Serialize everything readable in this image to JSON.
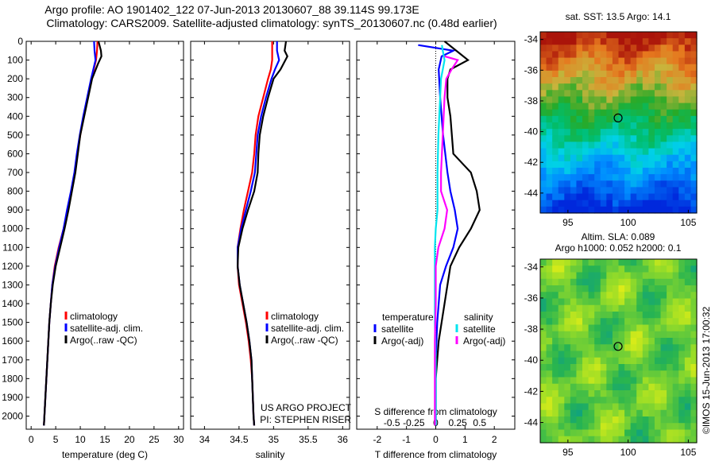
{
  "header": {
    "title1": "Argo profile: AO 1901402_122 07-Jun-2013 20130607_88 39.114S 99.173E",
    "title2": "Climatology: CARS2009. Satellite-adjusted climatology: synTS_20130607.nc (0.48d earlier)"
  },
  "colors": {
    "climatology": "#ff0000",
    "satellite": "#0000ff",
    "argo": "#000000",
    "sal_satellite": "#00e5ee",
    "sal_argo": "#ff00ff"
  },
  "chart_data": [
    {
      "type": "line",
      "id": "temperature",
      "xlabel": "temperature (deg C)",
      "xlim": [
        -1,
        31
      ],
      "xticks": [
        0,
        5,
        10,
        15,
        20,
        25,
        30
      ],
      "ylim": [
        2070,
        0
      ],
      "yticks": [
        0,
        100,
        200,
        300,
        400,
        500,
        600,
        700,
        800,
        900,
        1000,
        1100,
        1200,
        1300,
        1400,
        1500,
        1600,
        1700,
        1800,
        1900,
        2000
      ],
      "legend": [
        "climatology",
        "satellite-adj. clim.",
        "Argo(..raw -QC)"
      ],
      "series": [
        {
          "name": "climatology",
          "color": "red",
          "points": [
            [
              13.5,
              0
            ],
            [
              13.4,
              50
            ],
            [
              13.2,
              100
            ],
            [
              12.3,
              200
            ],
            [
              11.5,
              300
            ],
            [
              10.7,
              400
            ],
            [
              10.0,
              500
            ],
            [
              9.4,
              600
            ],
            [
              8.9,
              700
            ],
            [
              8.2,
              800
            ],
            [
              7.4,
              900
            ],
            [
              6.6,
              1000
            ],
            [
              5.6,
              1100
            ],
            [
              4.8,
              1200
            ],
            [
              4.3,
              1300
            ],
            [
              4.0,
              1400
            ],
            [
              3.7,
              1500
            ],
            [
              3.5,
              1600
            ],
            [
              3.3,
              1700
            ],
            [
              3.1,
              1800
            ],
            [
              2.9,
              1900
            ],
            [
              2.7,
              2000
            ],
            [
              2.6,
              2050
            ]
          ]
        },
        {
          "name": "satellite-adj. clim.",
          "color": "blue",
          "points": [
            [
              12.8,
              0
            ],
            [
              12.9,
              50
            ],
            [
              13.1,
              100
            ],
            [
              12.2,
              200
            ],
            [
              11.4,
              300
            ],
            [
              10.6,
              400
            ],
            [
              9.9,
              500
            ],
            [
              9.3,
              600
            ],
            [
              8.8,
              700
            ],
            [
              8.1,
              800
            ],
            [
              7.3,
              900
            ],
            [
              6.6,
              1000
            ],
            [
              5.7,
              1100
            ],
            [
              4.9,
              1200
            ],
            [
              4.3,
              1300
            ],
            [
              4.0,
              1400
            ],
            [
              3.7,
              1500
            ],
            [
              3.5,
              1600
            ],
            [
              3.3,
              1700
            ],
            [
              3.1,
              1800
            ],
            [
              2.9,
              1900
            ],
            [
              2.7,
              2000
            ],
            [
              2.6,
              2050
            ]
          ]
        },
        {
          "name": "Argo(..raw -QC)",
          "color": "black",
          "points": [
            [
              13.7,
              0
            ],
            [
              14.2,
              50
            ],
            [
              14.3,
              80
            ],
            [
              13.6,
              120
            ],
            [
              12.4,
              200
            ],
            [
              11.6,
              300
            ],
            [
              10.8,
              400
            ],
            [
              10.0,
              500
            ],
            [
              9.5,
              600
            ],
            [
              9.0,
              700
            ],
            [
              8.3,
              800
            ],
            [
              7.6,
              900
            ],
            [
              6.8,
              1000
            ],
            [
              5.9,
              1100
            ],
            [
              5.0,
              1200
            ],
            [
              4.4,
              1300
            ],
            [
              4.0,
              1400
            ],
            [
              3.7,
              1500
            ],
            [
              3.5,
              1600
            ],
            [
              3.3,
              1700
            ],
            [
              3.1,
              1800
            ],
            [
              2.9,
              1900
            ],
            [
              2.7,
              2000
            ],
            [
              2.6,
              2050
            ]
          ]
        }
      ]
    },
    {
      "type": "line",
      "id": "salinity",
      "xlabel": "salinity",
      "xlim": [
        33.8,
        36.1
      ],
      "xticks": [
        34,
        34.5,
        35,
        35.5,
        36
      ],
      "xticklabels": [
        "34",
        "34.5",
        "35",
        "35.5",
        "36"
      ],
      "ylim": [
        2070,
        0
      ],
      "legend": [
        "climatology",
        "satellite-adj. clim.",
        "Argo(..raw -QC)"
      ],
      "annotation": [
        "US ARGO PROJECT",
        "PI: STEPHEN RISER"
      ],
      "series": [
        {
          "name": "climatology",
          "color": "red",
          "points": [
            [
              34.98,
              0
            ],
            [
              34.98,
              100
            ],
            [
              34.96,
              150
            ],
            [
              34.92,
              200
            ],
            [
              34.85,
              300
            ],
            [
              34.78,
              400
            ],
            [
              34.74,
              500
            ],
            [
              34.72,
              600
            ],
            [
              34.69,
              700
            ],
            [
              34.63,
              800
            ],
            [
              34.57,
              900
            ],
            [
              34.52,
              1000
            ],
            [
              34.48,
              1100
            ],
            [
              34.48,
              1200
            ],
            [
              34.5,
              1300
            ],
            [
              34.55,
              1400
            ],
            [
              34.6,
              1500
            ],
            [
              34.64,
              1600
            ],
            [
              34.67,
              1700
            ],
            [
              34.69,
              1800
            ],
            [
              34.7,
              1900
            ],
            [
              34.71,
              2000
            ],
            [
              34.72,
              2050
            ]
          ]
        },
        {
          "name": "satellite-adj. clim.",
          "color": "blue",
          "points": [
            [
              35.05,
              0
            ],
            [
              35.05,
              50
            ],
            [
              35.08,
              100
            ],
            [
              35.02,
              150
            ],
            [
              34.97,
              200
            ],
            [
              34.89,
              300
            ],
            [
              34.82,
              400
            ],
            [
              34.77,
              500
            ],
            [
              34.75,
              600
            ],
            [
              34.73,
              700
            ],
            [
              34.67,
              800
            ],
            [
              34.6,
              900
            ],
            [
              34.53,
              1000
            ],
            [
              34.48,
              1100
            ],
            [
              34.48,
              1200
            ],
            [
              34.51,
              1300
            ],
            [
              34.56,
              1400
            ],
            [
              34.61,
              1500
            ],
            [
              34.65,
              1600
            ],
            [
              34.68,
              1700
            ],
            [
              34.69,
              1800
            ],
            [
              34.7,
              1900
            ],
            [
              34.71,
              2000
            ],
            [
              34.72,
              2050
            ]
          ]
        },
        {
          "name": "Argo(..raw -QC)",
          "color": "black",
          "points": [
            [
              35.18,
              0
            ],
            [
              35.16,
              50
            ],
            [
              35.2,
              80
            ],
            [
              35.1,
              150
            ],
            [
              35.0,
              200
            ],
            [
              34.92,
              300
            ],
            [
              34.85,
              400
            ],
            [
              34.8,
              500
            ],
            [
              34.78,
              600
            ],
            [
              34.77,
              700
            ],
            [
              34.72,
              800
            ],
            [
              34.63,
              900
            ],
            [
              34.55,
              1000
            ],
            [
              34.49,
              1100
            ],
            [
              34.48,
              1200
            ],
            [
              34.51,
              1300
            ],
            [
              34.56,
              1400
            ],
            [
              34.61,
              1500
            ],
            [
              34.65,
              1600
            ],
            [
              34.68,
              1700
            ],
            [
              34.69,
              1800
            ],
            [
              34.7,
              1900
            ],
            [
              34.71,
              2000
            ],
            [
              34.72,
              2050
            ]
          ]
        }
      ]
    },
    {
      "type": "line",
      "id": "difference",
      "xlabel": "T difference from climatology",
      "xlim": [
        -2.7,
        2.7
      ],
      "xticks": [
        -2,
        -1,
        0,
        1,
        2
      ],
      "xticklabels": [
        "-2",
        "-1",
        "0",
        "1",
        "2"
      ],
      "top_axis_label": "S difference from climatology",
      "top_xticks": [
        -0.5,
        -0.25,
        0,
        0.25,
        0.5
      ],
      "top_xticklabels": [
        "-0.5",
        "-0.25",
        "0",
        "0.25",
        "0.5"
      ],
      "ylim": [
        2070,
        0
      ],
      "legend_headers": [
        "temperature",
        "salinity"
      ],
      "legend": [
        "satellite",
        "Argo(-adj)",
        "satellite",
        "Argo(-adj)"
      ],
      "series": [
        {
          "name": "satellite",
          "group": "temperature",
          "color": "blue",
          "points": [
            [
              -0.6,
              20
            ],
            [
              0.6,
              50
            ],
            [
              0.2,
              80
            ],
            [
              0.1,
              150
            ],
            [
              0.15,
              300
            ],
            [
              0.25,
              500
            ],
            [
              0.4,
              700
            ],
            [
              0.5,
              800
            ],
            [
              0.65,
              900
            ],
            [
              0.75,
              1000
            ],
            [
              0.6,
              1100
            ],
            [
              0.35,
              1200
            ],
            [
              0.15,
              1300
            ],
            [
              0.05,
              1500
            ],
            [
              0.0,
              1700
            ],
            [
              0.0,
              2050
            ]
          ]
        },
        {
          "name": "Argo(-adj)",
          "group": "temperature",
          "color": "black",
          "points": [
            [
              0.3,
              0
            ],
            [
              0.7,
              50
            ],
            [
              1.1,
              100
            ],
            [
              0.5,
              150
            ],
            [
              0.4,
              200
            ],
            [
              0.4,
              300
            ],
            [
              0.5,
              400
            ],
            [
              0.6,
              600
            ],
            [
              1.2,
              700
            ],
            [
              1.4,
              800
            ],
            [
              1.5,
              900
            ],
            [
              1.2,
              1000
            ],
            [
              0.8,
              1100
            ],
            [
              0.5,
              1200
            ],
            [
              0.4,
              1300
            ],
            [
              0.3,
              1400
            ],
            [
              0.2,
              1500
            ],
            [
              0.1,
              1600
            ],
            [
              0.05,
              1700
            ],
            [
              0.0,
              1800
            ],
            [
              0.0,
              2050
            ]
          ]
        },
        {
          "name": "satellite",
          "group": "salinity",
          "color": "cyan",
          "points": [
            [
              0.07,
              20
            ],
            [
              0.08,
              50
            ],
            [
              0.1,
              100
            ],
            [
              0.08,
              150
            ],
            [
              0.06,
              200
            ],
            [
              0.05,
              300
            ],
            [
              0.03,
              500
            ],
            [
              0.02,
              700
            ],
            [
              0.02,
              900
            ],
            [
              0.0,
              1000
            ],
            [
              -0.01,
              1100
            ],
            [
              -0.01,
              1200
            ],
            [
              -0.01,
              1300
            ],
            [
              -0.01,
              1500
            ],
            [
              0.0,
              1700
            ],
            [
              0.0,
              2050
            ]
          ]
        },
        {
          "name": "Argo(-adj)",
          "group": "salinity",
          "color": "magenta",
          "points": [
            [
              0.1,
              80
            ],
            [
              0.25,
              100
            ],
            [
              0.18,
              150
            ],
            [
              0.12,
              200
            ],
            [
              0.1,
              300
            ],
            [
              0.08,
              500
            ],
            [
              0.06,
              700
            ],
            [
              0.06,
              800
            ],
            [
              0.13,
              900
            ],
            [
              0.1,
              1000
            ],
            [
              0.03,
              1100
            ],
            [
              0.0,
              1200
            ],
            [
              0.0,
              1400
            ],
            [
              -0.01,
              1600
            ],
            [
              -0.01,
              1800
            ],
            [
              -0.01,
              2050
            ]
          ]
        }
      ]
    }
  ],
  "maps": {
    "sst": {
      "title": "sat. SST: 13.5 Argo: 14.1",
      "xticks": [
        95,
        100,
        105
      ],
      "yticks": [
        -34,
        -36,
        -38,
        -40,
        -42,
        -44
      ],
      "xlim": [
        92.7,
        105.7
      ],
      "ylim": [
        -33.5,
        -45.3
      ],
      "marker": [
        99.17,
        -39.11
      ]
    },
    "sla": {
      "title1": "Altim. SLA: 0.089",
      "title2": "Argo h1000: 0.052 h2000: 0.1",
      "xticks": [
        95,
        100,
        105
      ],
      "yticks": [
        -34,
        -36,
        -38,
        -40,
        -42,
        -44
      ],
      "xlim": [
        92.7,
        105.7
      ],
      "ylim": [
        -33.5,
        -45.3
      ],
      "marker": [
        99.17,
        -39.11
      ]
    }
  },
  "footer_stamp": "©IMOS 15-Jun-2013 17:00:32"
}
